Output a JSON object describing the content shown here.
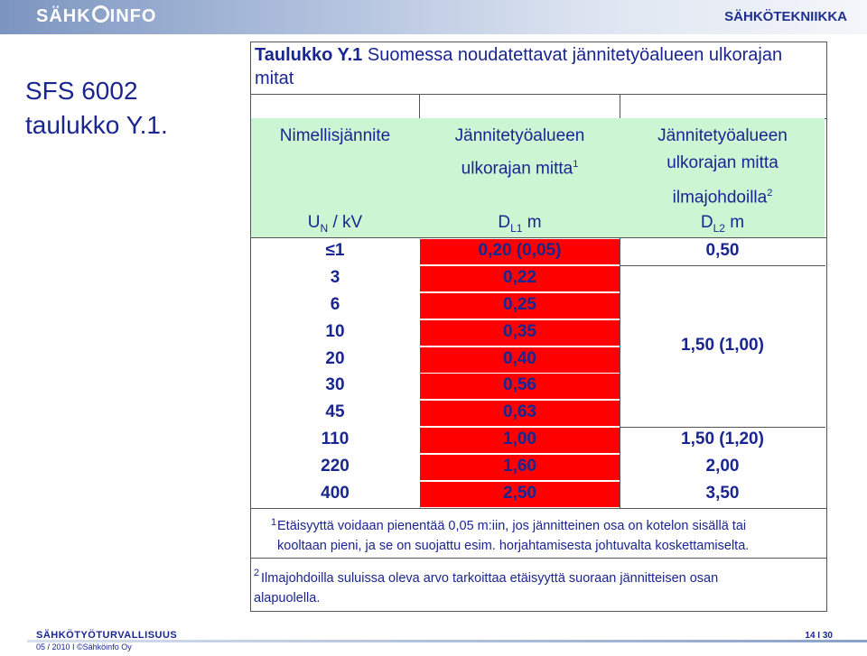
{
  "header": {
    "logo_text_a": "SÄHK",
    "logo_text_b": "INFO",
    "category": "SÄHKÖTEKNIIKKA"
  },
  "slide": {
    "title_line1": "SFS 6002",
    "title_line2": "taulukko Y.1."
  },
  "table": {
    "caption_bold": "Taulukko Y.1",
    "caption_rest": " Suomessa noudatettavat jännitetyöalueen ulkorajan mitat",
    "col1_header": "Nimellisjännite",
    "col1_unit_a": "U",
    "col1_unit_sub": "N",
    "col1_unit_b": " / kV",
    "col2_header_line1": "Jännitetyöalueen",
    "col2_header_line2": "ulkorajan mitta",
    "col2_sup": "1",
    "col2_unit_a": "D",
    "col2_unit_sub": "L1",
    "col2_unit_b": " m",
    "col3_header_line1": "Jännitetyöalueen",
    "col3_header_line2": "ulkorajan mitta",
    "col3_header_line3": "ilmajohdoilla",
    "col3_sup": "2",
    "col3_unit_a": "D",
    "col3_unit_sub": "L2",
    "col3_unit_b": " m",
    "rows": [
      {
        "voltage": "≤1",
        "dl1": "0,20 (0,05)"
      },
      {
        "voltage": "3",
        "dl1": "0,22"
      },
      {
        "voltage": "6",
        "dl1": "0,25"
      },
      {
        "voltage": "10",
        "dl1": "0,35"
      },
      {
        "voltage": "20",
        "dl1": "0,40"
      },
      {
        "voltage": "30",
        "dl1": "0,56"
      },
      {
        "voltage": "45",
        "dl1": "0,63"
      },
      {
        "voltage": "110",
        "dl1": "1,00"
      },
      {
        "voltage": "220",
        "dl1": "1,60"
      },
      {
        "voltage": "400",
        "dl1": "2,50"
      }
    ],
    "dl2_values": {
      "first": "0,50",
      "merged": "1,50 (1,00)",
      "r110": "1,50 (1,20)",
      "r220": "2,00",
      "r400": "3,50"
    }
  },
  "notes": {
    "n1_mark": "1",
    "n1_line1": "Etäisyyttä voidaan pienentää 0,05 m:iin, jos jännitteinen osa on kotelon sisällä tai",
    "n1_line2": "kooltaan pieni, ja se on suojattu esim. horjahtamisesta johtuvalta koskettamiselta.",
    "n2_mark": "2",
    "n2_line1": "Ilmajohdoilla suluissa oleva arvo tarkoittaa etäisyyttä suoraan jännitteisen osan",
    "n2_line2": "alapuolella."
  },
  "footer": {
    "title": "SÄHKÖTYÖTURVALLISUUS",
    "date_copy": "05 / 2010  I  ©Sähköinfo Oy",
    "page": "14  I  30"
  }
}
